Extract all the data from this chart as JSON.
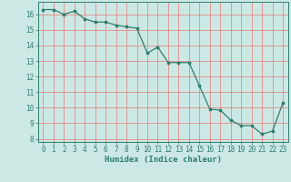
{
  "x": [
    0,
    1,
    2,
    3,
    4,
    5,
    6,
    7,
    8,
    9,
    10,
    11,
    12,
    13,
    14,
    15,
    16,
    17,
    18,
    19,
    20,
    21,
    22,
    23
  ],
  "y": [
    16.3,
    16.3,
    16.0,
    16.2,
    15.7,
    15.5,
    15.5,
    15.3,
    15.2,
    15.1,
    13.5,
    13.9,
    12.9,
    12.9,
    12.9,
    11.4,
    9.9,
    9.85,
    9.2,
    8.85,
    8.85,
    8.3,
    8.5,
    10.3
  ],
  "line_color": "#2e7d6e",
  "marker_color": "#2e7d6e",
  "bg_color": "#cce8e4",
  "grid_color": "#e87878",
  "xlabel": "Humidex (Indice chaleur)",
  "xlim": [
    -0.5,
    23.5
  ],
  "ylim": [
    7.8,
    16.8
  ],
  "yticks": [
    8,
    9,
    10,
    11,
    12,
    13,
    14,
    15,
    16
  ],
  "xticks": [
    0,
    1,
    2,
    3,
    4,
    5,
    6,
    7,
    8,
    9,
    10,
    11,
    12,
    13,
    14,
    15,
    16,
    17,
    18,
    19,
    20,
    21,
    22,
    23
  ],
  "tick_fontsize": 5.5,
  "label_fontsize": 6.5
}
